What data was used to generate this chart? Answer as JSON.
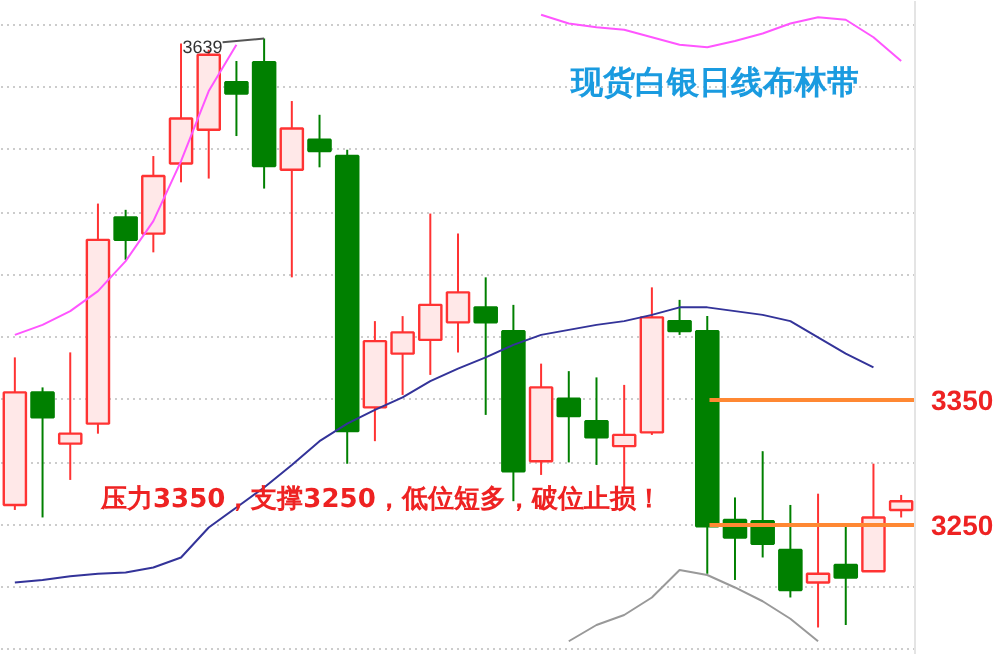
{
  "chart_data": {
    "type": "candlestick",
    "title": "现货白银日线布林带",
    "categories": [
      null,
      null,
      null,
      null,
      null,
      null,
      null,
      null,
      null,
      null,
      null,
      null,
      null,
      null,
      null,
      null,
      null,
      null,
      null,
      null,
      null,
      null,
      null,
      null,
      null,
      null,
      null,
      null,
      null,
      null,
      null,
      null,
      null
    ],
    "ohlc": [
      [
        3266,
        3384,
        3262,
        3356
      ],
      [
        3356,
        3360,
        3256,
        3336
      ],
      [
        3315,
        3388,
        3286,
        3323
      ],
      [
        3331,
        3507,
        3323,
        3478
      ],
      [
        3496,
        3502,
        3462,
        3478
      ],
      [
        3483,
        3545,
        3468,
        3529
      ],
      [
        3539,
        3635,
        3524,
        3575
      ],
      [
        3566,
        3630,
        3527,
        3626
      ],
      [
        3604,
        3621,
        3561,
        3595
      ],
      [
        3620,
        3639,
        3519,
        3537
      ],
      [
        3534,
        3589,
        3448,
        3567
      ],
      [
        3558,
        3578,
        3536,
        3549
      ],
      [
        3545,
        3550,
        3299,
        3325
      ],
      [
        3344,
        3413,
        3317,
        3397
      ],
      [
        3387,
        3417,
        3354,
        3404
      ],
      [
        3398,
        3499,
        3370,
        3426
      ],
      [
        3412,
        3483,
        3388,
        3436
      ],
      [
        3424,
        3448,
        3338,
        3412
      ],
      [
        3405,
        3426,
        3269,
        3293
      ],
      [
        3301,
        3379,
        3290,
        3360
      ],
      [
        3351,
        3373,
        3300,
        3337
      ],
      [
        3333,
        3368,
        3298,
        3320
      ],
      [
        3313,
        3362,
        3278,
        3322
      ],
      [
        3324,
        3440,
        3322,
        3416
      ],
      [
        3413,
        3430,
        3402,
        3405
      ],
      [
        3405,
        3417,
        3211,
        3249
      ],
      [
        3254,
        3272,
        3206,
        3240
      ],
      [
        3253,
        3309,
        3224,
        3235
      ],
      [
        3230,
        3266,
        3192,
        3198
      ],
      [
        3204,
        3275,
        3168,
        3211
      ],
      [
        3218,
        3249,
        3170,
        3208
      ],
      [
        3213,
        3299,
        3213,
        3256
      ],
      [
        3262,
        3274,
        3256,
        3269
      ]
    ],
    "colors": [
      "#ff3333",
      "#008000",
      "#ff3333",
      "#ff3333",
      "#008000",
      "#ff3333",
      "#ff3333",
      "#ff3333",
      "#008000",
      "#008000",
      "#ff3333",
      "#008000",
      "#008000",
      "#ff3333",
      "#ff3333",
      "#ff3333",
      "#ff3333",
      "#008000",
      "#008000",
      "#ff3333",
      "#008000",
      "#008000",
      "#ff3333",
      "#ff3333",
      "#008000",
      "#008000",
      "#008000",
      "#008000",
      "#008000",
      "#ff3333",
      "#008000",
      "#ff3333",
      "#ff3333"
    ],
    "series": [
      {
        "type": "line",
        "color": "#ff55ff",
        "values": [
          3402,
          3410,
          3421,
          3437,
          3461,
          3493,
          3541,
          3597,
          3634,
          null,
          null,
          null,
          null,
          null,
          null,
          null,
          null,
          null,
          null,
          3658,
          3651,
          3648,
          3646,
          3640,
          3634,
          3632,
          3637,
          3643,
          3651,
          3656,
          3654,
          3640,
          3621
        ]
      },
      {
        "type": "line",
        "color": "#333399",
        "values": [
          3204,
          3206,
          3209,
          3211,
          3212,
          3216,
          3224,
          3248,
          3264,
          3280,
          3298,
          3317,
          3331,
          3342,
          3352,
          3365,
          3375,
          3384,
          3394,
          3402,
          3406,
          3410,
          3413,
          3418,
          3424,
          3424,
          3421,
          3418,
          3413,
          3400,
          3387,
          3376,
          null
        ]
      },
      {
        "type": "line",
        "color": "#999999",
        "values": [
          null,
          null,
          null,
          null,
          null,
          null,
          null,
          null,
          null,
          null,
          null,
          null,
          null,
          null,
          null,
          null,
          null,
          null,
          null,
          null,
          3157,
          3170,
          3178,
          3192,
          3214,
          3210,
          3200,
          3189,
          3175,
          3157,
          null,
          null,
          null
        ]
      }
    ],
    "ylim": [
      3146,
      3669
    ],
    "yticks": [
      {
        "value": 3150,
        "label": null
      },
      {
        "value": 3200,
        "label": null
      },
      3250,
      {
        "value": 3300,
        "label": null
      },
      3350,
      {
        "value": 3400,
        "label": null
      },
      {
        "value": 3450,
        "label": null
      },
      {
        "value": 3500,
        "label": null
      },
      {
        "value": 3550,
        "label": null
      },
      {
        "value": 3600,
        "label": null
      },
      {
        "value": 3650,
        "label": null
      }
    ],
    "grid": "y",
    "tick_labels": "y",
    "ref_lines": [
      {
        "axis": "y",
        "value": 3350,
        "color": "#ff8833"
      },
      {
        "axis": "y",
        "value": 3250,
        "color": "#ff8833"
      }
    ],
    "annotations": [
      "3639",
      "压力3350，支撑3250，低位短多，破位止损！"
    ]
  }
}
